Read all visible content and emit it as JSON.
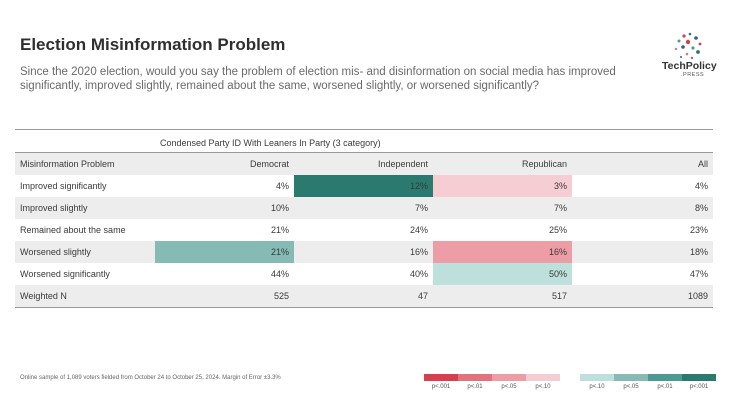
{
  "title": "Election Misinformation Problem",
  "subtitle": "Since the 2020 election, would you say the problem of election mis- and disinformation on social media has improved significantly, improved slightly, remained about the same, worsened slightly, or worsened significantly?",
  "logo": {
    "word": "TechPolicy",
    "sub": ".PRESS"
  },
  "footnote": "Online sample of 1,089 voters fielded from October 24 to October 25, 2024. Margin of Error ±3.3%",
  "colors": {
    "red_001": "#d5404f",
    "red_01": "#e2737d",
    "red_05": "#ed9da5",
    "red_10": "#f6cdd2",
    "teal_10": "#bde0dc",
    "teal_05": "#86bbb5",
    "teal_01": "#4d9a91",
    "teal_001": "#2a7a70"
  },
  "chart_data": {
    "type": "table",
    "group_label": "Condensed Party ID With Leaners In Party (3 category)",
    "columns": [
      "Misinformation Problem",
      "Democrat",
      "Independent",
      "Republican",
      "All"
    ],
    "rows": [
      {
        "label": "Improved significantly",
        "values": [
          "4%",
          "12%",
          "3%",
          "4%"
        ],
        "sig": [
          "",
          "teal_001",
          "red_10",
          ""
        ]
      },
      {
        "label": "Improved slightly",
        "values": [
          "10%",
          "7%",
          "7%",
          "8%"
        ],
        "sig": [
          "",
          "",
          "",
          ""
        ]
      },
      {
        "label": "Remained about the same",
        "values": [
          "21%",
          "24%",
          "25%",
          "23%"
        ],
        "sig": [
          "",
          "",
          "",
          ""
        ]
      },
      {
        "label": "Worsened slightly",
        "values": [
          "21%",
          "16%",
          "16%",
          "18%"
        ],
        "sig": [
          "teal_05",
          "",
          "red_05",
          ""
        ]
      },
      {
        "label": "Worsened significantly",
        "values": [
          "44%",
          "40%",
          "50%",
          "47%"
        ],
        "sig": [
          "",
          "",
          "teal_10",
          ""
        ]
      },
      {
        "label": "Weighted N",
        "values": [
          "525",
          "47",
          "517",
          "1089"
        ],
        "sig": [
          "",
          "",
          "",
          ""
        ]
      }
    ],
    "legend": [
      {
        "label": "p<.001",
        "color": "red_001"
      },
      {
        "label": "p<.01",
        "color": "red_01"
      },
      {
        "label": "p<.05",
        "color": "red_05"
      },
      {
        "label": "p<.10",
        "color": "red_10"
      },
      {
        "label": "p<.10",
        "color": "teal_10"
      },
      {
        "label": "p<.05",
        "color": "teal_05"
      },
      {
        "label": "p<.01",
        "color": "teal_01"
      },
      {
        "label": "p<.001",
        "color": "teal_001"
      }
    ]
  }
}
